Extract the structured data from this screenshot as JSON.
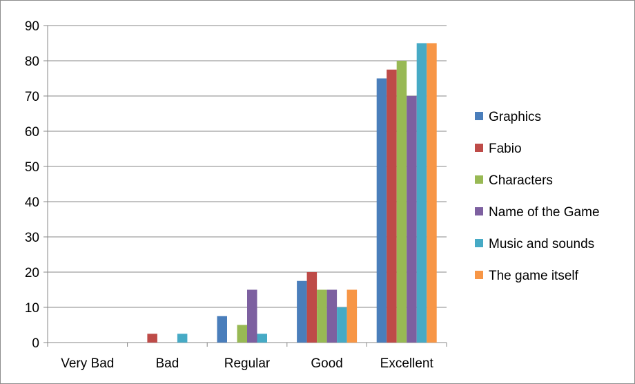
{
  "chart_data": {
    "type": "bar",
    "title": "",
    "xlabel": "",
    "ylabel": "",
    "categories": [
      "Very Bad",
      "Bad",
      "Regular",
      "Good",
      "Excellent"
    ],
    "ylim": [
      0,
      90
    ],
    "yticks": [
      0,
      10,
      20,
      30,
      40,
      50,
      60,
      70,
      80,
      90
    ],
    "grid": true,
    "legend_position": "right",
    "series": [
      {
        "name": "Graphics",
        "color": "#4a7ebb",
        "values": [
          0,
          0,
          7.5,
          17.5,
          75
        ]
      },
      {
        "name": "Fabio",
        "color": "#be4b48",
        "values": [
          0,
          2.5,
          0,
          20,
          77.5
        ]
      },
      {
        "name": "Characters",
        "color": "#98b954",
        "values": [
          0,
          0,
          5,
          15,
          80
        ]
      },
      {
        "name": "Name of the Game",
        "color": "#7d60a0",
        "values": [
          0,
          0,
          15,
          15,
          70
        ]
      },
      {
        "name": "Music and sounds",
        "color": "#46aac5",
        "values": [
          0,
          2.5,
          2.5,
          10,
          85
        ]
      },
      {
        "name": "The game itself",
        "color": "#f79646",
        "values": [
          0,
          0,
          0,
          15,
          85
        ]
      }
    ]
  }
}
